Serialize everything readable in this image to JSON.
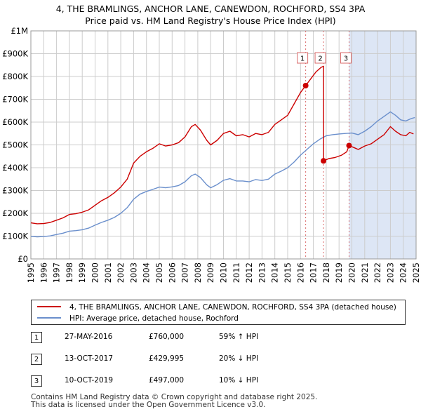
{
  "title_line1": "4, THE BRAMLINGS, ANCHOR LANE, CANEWDON, ROCHFORD, SS4 3PA",
  "title_line2": "Price paid vs. HM Land Registry's House Price Index (HPI)",
  "legend": {
    "red_label": "4, THE BRAMLINGS, ANCHOR LANE, CANEWDON, ROCHFORD, SS4 3PA (detached house)",
    "blue_label": "HPI: Average price, detached house, Rochford"
  },
  "transactions": [
    {
      "num": "1",
      "date": "27-MAY-2016",
      "price": "£760,000",
      "hpi": "59% ↑ HPI"
    },
    {
      "num": "2",
      "date": "13-OCT-2017",
      "price": "£429,995",
      "hpi": "20% ↓ HPI"
    },
    {
      "num": "3",
      "date": "10-OCT-2019",
      "price": "£497,000",
      "hpi": "10% ↓ HPI"
    }
  ],
  "footer_line1": "Contains HM Land Registry data © Crown copyright and database right 2025.",
  "footer_line2": "This data is licensed under the Open Government Licence v3.0.",
  "chart_data": {
    "type": "line",
    "title": "Price paid vs. HM Land Registry's House Price Index (HPI)",
    "xlim": [
      1995,
      2025
    ],
    "ylim": [
      0,
      1000000
    ],
    "x_ticks": [
      1995,
      1996,
      1997,
      1998,
      1999,
      2000,
      2001,
      2002,
      2003,
      2004,
      2005,
      2006,
      2007,
      2008,
      2009,
      2010,
      2011,
      2012,
      2013,
      2014,
      2015,
      2016,
      2017,
      2018,
      2019,
      2020,
      2021,
      2022,
      2023,
      2024,
      2025
    ],
    "y_ticks": [
      {
        "value": 0,
        "label": "£0"
      },
      {
        "value": 100000,
        "label": "£100K"
      },
      {
        "value": 200000,
        "label": "£200K"
      },
      {
        "value": 300000,
        "label": "£300K"
      },
      {
        "value": 400000,
        "label": "£400K"
      },
      {
        "value": 500000,
        "label": "£500K"
      },
      {
        "value": 600000,
        "label": "£600K"
      },
      {
        "value": 700000,
        "label": "£700K"
      },
      {
        "value": 800000,
        "label": "£800K"
      },
      {
        "value": 900000,
        "label": "£900K"
      },
      {
        "value": 1000000,
        "label": "£1M"
      }
    ],
    "shaded_region": {
      "from": 2019.78,
      "to": 2025,
      "color": "#dde6f5"
    },
    "colors": {
      "red": "#cc0000",
      "blue": "#6a8fcc",
      "grid": "#cccccc",
      "vline": "#d96a6a"
    },
    "markers": [
      {
        "label": "1",
        "x": 2016.4,
        "y": 760000
      },
      {
        "label": "2",
        "x": 2017.79,
        "y": 429995
      },
      {
        "label": "3",
        "x": 2019.78,
        "y": 497000
      }
    ],
    "series": [
      {
        "name": "4, THE BRAMLINGS, ANCHOR LANE, CANEWDON, ROCHFORD, SS4 3PA (detached house)",
        "color": "#cc0000",
        "points": [
          [
            1995.0,
            158000
          ],
          [
            1995.5,
            154000
          ],
          [
            1996.0,
            155000
          ],
          [
            1996.5,
            160000
          ],
          [
            1997.0,
            170000
          ],
          [
            1997.5,
            180000
          ],
          [
            1998.0,
            195000
          ],
          [
            1998.5,
            198000
          ],
          [
            1999.0,
            205000
          ],
          [
            1999.5,
            215000
          ],
          [
            2000.0,
            235000
          ],
          [
            2000.5,
            255000
          ],
          [
            2001.0,
            270000
          ],
          [
            2001.5,
            290000
          ],
          [
            2002.0,
            315000
          ],
          [
            2002.5,
            350000
          ],
          [
            2003.0,
            420000
          ],
          [
            2003.5,
            450000
          ],
          [
            2004.0,
            470000
          ],
          [
            2004.5,
            485000
          ],
          [
            2005.0,
            505000
          ],
          [
            2005.5,
            495000
          ],
          [
            2006.0,
            500000
          ],
          [
            2006.5,
            510000
          ],
          [
            2007.0,
            535000
          ],
          [
            2007.5,
            580000
          ],
          [
            2007.8,
            590000
          ],
          [
            2008.2,
            565000
          ],
          [
            2008.7,
            520000
          ],
          [
            2009.0,
            500000
          ],
          [
            2009.5,
            520000
          ],
          [
            2010.0,
            550000
          ],
          [
            2010.5,
            560000
          ],
          [
            2011.0,
            540000
          ],
          [
            2011.5,
            545000
          ],
          [
            2012.0,
            535000
          ],
          [
            2012.5,
            550000
          ],
          [
            2013.0,
            545000
          ],
          [
            2013.5,
            555000
          ],
          [
            2014.0,
            590000
          ],
          [
            2014.5,
            610000
          ],
          [
            2015.0,
            630000
          ],
          [
            2015.5,
            680000
          ],
          [
            2016.0,
            730000
          ],
          [
            2016.4,
            760000
          ],
          [
            2016.8,
            790000
          ],
          [
            2017.2,
            820000
          ],
          [
            2017.6,
            840000
          ],
          [
            2017.79,
            845000
          ],
          [
            2017.8,
            429995
          ],
          [
            2018.2,
            440000
          ],
          [
            2018.7,
            445000
          ],
          [
            2019.2,
            455000
          ],
          [
            2019.6,
            470000
          ],
          [
            2019.78,
            497000
          ],
          [
            2020.1,
            490000
          ],
          [
            2020.5,
            480000
          ],
          [
            2021.0,
            495000
          ],
          [
            2021.5,
            505000
          ],
          [
            2022.0,
            525000
          ],
          [
            2022.5,
            545000
          ],
          [
            2023.0,
            580000
          ],
          [
            2023.4,
            560000
          ],
          [
            2023.8,
            545000
          ],
          [
            2024.2,
            540000
          ],
          [
            2024.5,
            555000
          ],
          [
            2024.8,
            548000
          ]
        ]
      },
      {
        "name": "HPI: Average price, detached house, Rochford",
        "color": "#6a8fcc",
        "points": [
          [
            1995.0,
            99000
          ],
          [
            1995.5,
            97000
          ],
          [
            1996.0,
            98000
          ],
          [
            1996.5,
            101000
          ],
          [
            1997.0,
            107000
          ],
          [
            1997.5,
            113000
          ],
          [
            1998.0,
            122000
          ],
          [
            1998.5,
            124000
          ],
          [
            1999.0,
            128000
          ],
          [
            1999.5,
            135000
          ],
          [
            2000.0,
            148000
          ],
          [
            2000.5,
            160000
          ],
          [
            2001.0,
            170000
          ],
          [
            2001.5,
            182000
          ],
          [
            2002.0,
            200000
          ],
          [
            2002.5,
            225000
          ],
          [
            2003.0,
            262000
          ],
          [
            2003.5,
            284000
          ],
          [
            2004.0,
            296000
          ],
          [
            2004.5,
            305000
          ],
          [
            2005.0,
            315000
          ],
          [
            2005.5,
            312000
          ],
          [
            2006.0,
            316000
          ],
          [
            2006.5,
            322000
          ],
          [
            2007.0,
            338000
          ],
          [
            2007.5,
            365000
          ],
          [
            2007.8,
            372000
          ],
          [
            2008.2,
            357000
          ],
          [
            2008.7,
            325000
          ],
          [
            2009.0,
            312000
          ],
          [
            2009.5,
            326000
          ],
          [
            2010.0,
            345000
          ],
          [
            2010.5,
            352000
          ],
          [
            2011.0,
            342000
          ],
          [
            2011.5,
            342000
          ],
          [
            2012.0,
            338000
          ],
          [
            2012.5,
            348000
          ],
          [
            2013.0,
            344000
          ],
          [
            2013.5,
            350000
          ],
          [
            2014.0,
            372000
          ],
          [
            2014.5,
            385000
          ],
          [
            2015.0,
            400000
          ],
          [
            2015.5,
            425000
          ],
          [
            2016.0,
            455000
          ],
          [
            2016.5,
            480000
          ],
          [
            2017.0,
            505000
          ],
          [
            2017.5,
            525000
          ],
          [
            2018.0,
            540000
          ],
          [
            2018.5,
            545000
          ],
          [
            2019.0,
            548000
          ],
          [
            2019.5,
            550000
          ],
          [
            2020.0,
            552000
          ],
          [
            2020.5,
            545000
          ],
          [
            2021.0,
            560000
          ],
          [
            2021.5,
            580000
          ],
          [
            2022.0,
            605000
          ],
          [
            2022.5,
            625000
          ],
          [
            2023.0,
            645000
          ],
          [
            2023.4,
            630000
          ],
          [
            2023.8,
            610000
          ],
          [
            2024.2,
            605000
          ],
          [
            2024.6,
            615000
          ],
          [
            2024.9,
            620000
          ]
        ]
      }
    ]
  }
}
